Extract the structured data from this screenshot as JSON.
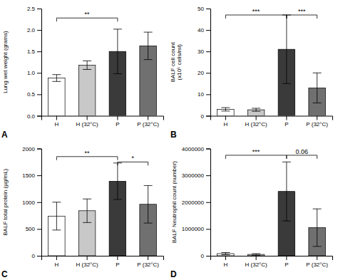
{
  "chart_data": [
    {
      "type": "bar",
      "title": "A",
      "ylabel": "Lung wet weight (grams)",
      "categories": [
        "H",
        "H (32°C)",
        "P",
        "P (32°C)"
      ],
      "values": [
        0.88,
        1.18,
        1.5,
        1.63
      ],
      "errors": [
        0.08,
        0.1,
        0.52,
        0.32
      ],
      "colors": [
        "#ffffff",
        "#c8c8c8",
        "#3a3a3a",
        "#707070"
      ],
      "ylim": [
        0,
        2.5
      ],
      "yticks": [
        {
          "value": 0.0,
          "label": "0.0"
        },
        0.5,
        {
          "value": 1.0,
          "label": "1.0"
        },
        1.5,
        {
          "value": 2.0,
          "label": "2.0"
        },
        2.5
      ],
      "annotations": [
        {
          "from": "H",
          "to": "P",
          "y": 2.28,
          "label": "**"
        }
      ]
    },
    {
      "type": "bar",
      "title": "B",
      "ylabel": "BALF cell count\n(x10⁵ cells/ml)",
      "categories": [
        "H",
        "H (32°C)",
        "P",
        "P (32°C)"
      ],
      "values": [
        3.0,
        2.8,
        31.0,
        13.0
      ],
      "errors": [
        0.8,
        0.7,
        16.0,
        7.0
      ],
      "colors": [
        "#ffffff",
        "#c8c8c8",
        "#3a3a3a",
        "#707070"
      ],
      "ylim": [
        0,
        50
      ],
      "yticks": [
        0,
        10,
        20,
        30,
        40,
        50
      ],
      "annotations": [
        {
          "from": "H",
          "to": "P",
          "y": 47,
          "label": "***"
        },
        {
          "from": "P",
          "to": "P (32°C)",
          "y": 47,
          "label": "***"
        }
      ]
    },
    {
      "type": "bar",
      "title": "C",
      "ylabel": "BALF total protein (µg/mL)",
      "categories": [
        "H",
        "H (32°C)",
        "P",
        "P (32°C)"
      ],
      "values": [
        740,
        840,
        1390,
        960
      ],
      "errors": [
        260,
        220,
        340,
        350
      ],
      "colors": [
        "#ffffff",
        "#c8c8c8",
        "#3a3a3a",
        "#707070"
      ],
      "ylim": [
        0,
        2000
      ],
      "yticks": [
        0,
        500,
        1000,
        1500,
        2000
      ],
      "annotations": [
        {
          "from": "H",
          "to": "P",
          "y": 1850,
          "label": "**"
        },
        {
          "from": "P",
          "to": "P (32°C)",
          "y": 1750,
          "label": "*"
        }
      ]
    },
    {
      "type": "bar",
      "title": "D",
      "ylabel": "BALF Neutrophil count (number)",
      "categories": [
        "H",
        "H (32°C)",
        "P",
        "P (32°C)"
      ],
      "values": [
        80000,
        50000,
        2400000,
        1050000
      ],
      "errors": [
        40000,
        30000,
        1100000,
        700000
      ],
      "colors": [
        "#ffffff",
        "#c8c8c8",
        "#3a3a3a",
        "#707070"
      ],
      "ylim": [
        0,
        4000000
      ],
      "yticks": [
        0,
        1000000,
        2000000,
        3000000,
        4000000
      ],
      "annotations": [
        {
          "from": "H",
          "to": "P",
          "y": 3750000,
          "label": "***"
        },
        {
          "from": "P",
          "to": "P (32°C)",
          "y": 3750000,
          "label": "0.06"
        }
      ]
    }
  ]
}
